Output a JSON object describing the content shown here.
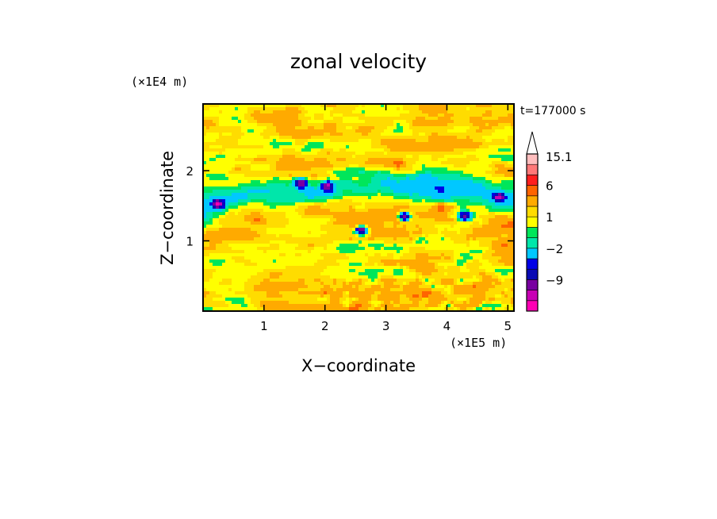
{
  "chart_data": {
    "type": "heatmap",
    "title": "zonal velocity",
    "xlabel": "X−coordinate",
    "ylabel": "Z−coordinate",
    "x_unit": "(×1E5 m)",
    "y_unit": "(×1E4 m)",
    "time_label": "t=177000 s",
    "xlim": [
      0,
      5.1
    ],
    "ylim": [
      0,
      2.95
    ],
    "x_ticks": [
      1,
      2,
      3,
      4,
      5
    ],
    "y_ticks": [
      1,
      2
    ],
    "colorbar": {
      "levels": [
        -15,
        -12,
        -9,
        -6,
        -4,
        -2,
        -1,
        0,
        1,
        2,
        4,
        6,
        9,
        12,
        15.1
      ],
      "tick_labels": [
        "15.1",
        "6",
        "1",
        "−2",
        "−9"
      ],
      "tick_values": [
        15.1,
        6,
        1,
        -2,
        -9
      ],
      "colors": [
        "#ff00b4",
        "#c800b4",
        "#7800a0",
        "#0a0ab4",
        "#0000e6",
        "#00c8ff",
        "#00e6aa",
        "#00e65a",
        "#ffff00",
        "#ffdc00",
        "#ffaa00",
        "#ff6400",
        "#ff1e1e",
        "#ff7878",
        "#ffbebe"
      ],
      "overflow_arrow": true
    },
    "features": [
      {
        "kind": "jet",
        "value": -3,
        "x": [
          0,
          5.1
        ],
        "z_center_start": 1.5,
        "z_center_end": 1.78,
        "thickness": 0.18
      },
      {
        "kind": "patch",
        "value": -12,
        "x": 1.6,
        "z": 1.82
      },
      {
        "kind": "patch",
        "value": -12,
        "x": 2.05,
        "z": 1.78
      },
      {
        "kind": "patch",
        "value": -12,
        "x": 0.25,
        "z": 1.52
      },
      {
        "kind": "patch",
        "value": -12,
        "x": 3.3,
        "z": 1.35
      },
      {
        "kind": "patch",
        "value": -12,
        "x": 4.3,
        "z": 1.35
      },
      {
        "kind": "patch",
        "value": -12,
        "x": 4.85,
        "z": 1.62
      },
      {
        "kind": "patch",
        "value": -12,
        "x": 2.6,
        "z": 1.15
      },
      {
        "kind": "patch",
        "value": 3,
        "x": 0.9,
        "z": 1.3
      },
      {
        "kind": "patch",
        "value": 3,
        "x": 1.6,
        "z": 2.4
      },
      {
        "kind": "patch",
        "value": 3,
        "x": 3.2,
        "z": 2.1
      },
      {
        "kind": "patch",
        "value": 4,
        "x": 3.9,
        "z": 1.5
      }
    ]
  }
}
